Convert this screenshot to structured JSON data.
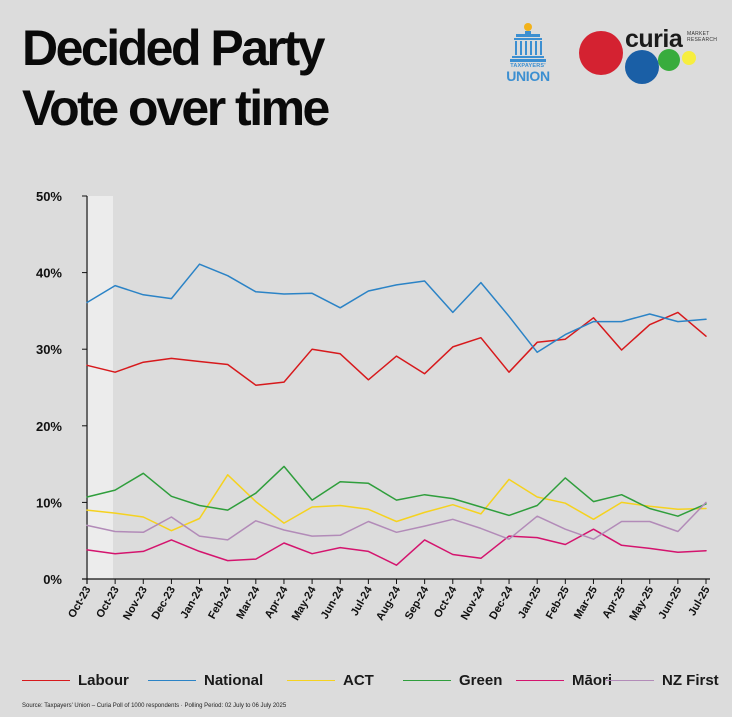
{
  "title": {
    "line1": "Decided Party",
    "line2": "Vote over time"
  },
  "logos": {
    "tu_small": "TAXPAYERS'",
    "tu_big": "UNION",
    "curia_word": "curia",
    "curia_sub1": "MARKET",
    "curia_sub2": "RESEARCH"
  },
  "colors": {
    "background": "#dcdcdc",
    "Labour": "#d7191c",
    "National": "#2b83c6",
    "ACT": "#f5d21f",
    "Green": "#2f9e3c",
    "Maori": "#d4146e",
    "NZFirst": "#b28bb8",
    "curia_red": "#d42231",
    "curia_blue": "#1a5fa6",
    "curia_green": "#38ac3d",
    "curia_yellow": "#f7ee3f"
  },
  "chart_data": {
    "type": "line",
    "title": "Decided Party Vote over time",
    "xlabel": "",
    "ylabel": "",
    "ylim": [
      0,
      50
    ],
    "yticks": [
      "0%",
      "10%",
      "20%",
      "30%",
      "40%",
      "50%"
    ],
    "yticks_values": [
      0,
      10,
      20,
      30,
      40,
      50
    ],
    "grid": false,
    "legend_position": "bottom",
    "categories": [
      "Oct-23",
      "Oct-23",
      "Nov-23",
      "Dec-23",
      "Jan-24",
      "Feb-24",
      "Mar-24",
      "Apr-24",
      "May-24",
      "Jun-24",
      "Jul-24",
      "Aug-24",
      "Sep-24",
      "Oct-24",
      "Nov-24",
      "Dec-24",
      "Jan-25",
      "Feb-25",
      "Mar-25",
      "Apr-25",
      "May-25",
      "Jun-25",
      "Jul-25"
    ],
    "highlight_category_index": 0,
    "series": [
      {
        "name": "Labour",
        "key": "Labour",
        "values": [
          27.9,
          27.0,
          28.3,
          28.8,
          28.4,
          28.0,
          25.3,
          25.7,
          30.0,
          29.4,
          26.0,
          29.1,
          26.8,
          30.3,
          31.5,
          27.0,
          30.9,
          31.3,
          34.1,
          29.9,
          33.2,
          34.8,
          31.7
        ]
      },
      {
        "name": "National",
        "key": "National",
        "values": [
          36.1,
          38.3,
          37.1,
          36.6,
          41.1,
          39.6,
          37.5,
          37.2,
          37.3,
          35.4,
          37.6,
          38.4,
          38.9,
          34.8,
          38.7,
          34.3,
          29.6,
          31.9,
          33.6,
          33.6,
          34.6,
          33.6,
          33.9
        ]
      },
      {
        "name": "ACT",
        "key": "ACT",
        "values": [
          9.0,
          8.6,
          8.1,
          6.3,
          7.9,
          13.6,
          10.1,
          7.3,
          9.4,
          9.6,
          9.1,
          7.5,
          8.7,
          9.7,
          8.5,
          13.0,
          10.7,
          9.9,
          7.8,
          10.0,
          9.5,
          9.1,
          9.2
        ]
      },
      {
        "name": "Green",
        "key": "Green",
        "values": [
          10.7,
          11.6,
          13.8,
          10.8,
          9.6,
          9.0,
          11.2,
          14.7,
          10.3,
          12.7,
          12.5,
          10.3,
          11.0,
          10.5,
          9.4,
          8.3,
          9.6,
          13.2,
          10.1,
          11.0,
          9.2,
          8.2,
          9.8
        ]
      },
      {
        "name": "Māori",
        "key": "Maori",
        "values": [
          3.8,
          3.3,
          3.6,
          5.1,
          3.6,
          2.4,
          2.6,
          4.7,
          3.3,
          4.1,
          3.6,
          1.8,
          5.1,
          3.2,
          2.7,
          5.6,
          5.4,
          4.5,
          6.5,
          4.4,
          4.0,
          3.5,
          3.7
        ]
      },
      {
        "name": "NZ First",
        "key": "NZFirst",
        "values": [
          7.0,
          6.2,
          6.1,
          8.1,
          5.6,
          5.1,
          7.6,
          6.4,
          5.6,
          5.7,
          7.5,
          6.1,
          6.9,
          7.8,
          6.6,
          5.2,
          8.2,
          6.5,
          5.2,
          7.5,
          7.5,
          6.2,
          10.0
        ]
      }
    ]
  },
  "source": "Source: Taxpayers' Union – Curia Poll of 1000 respondents  ·  Polling Period: 02 July to 06 July 2025"
}
